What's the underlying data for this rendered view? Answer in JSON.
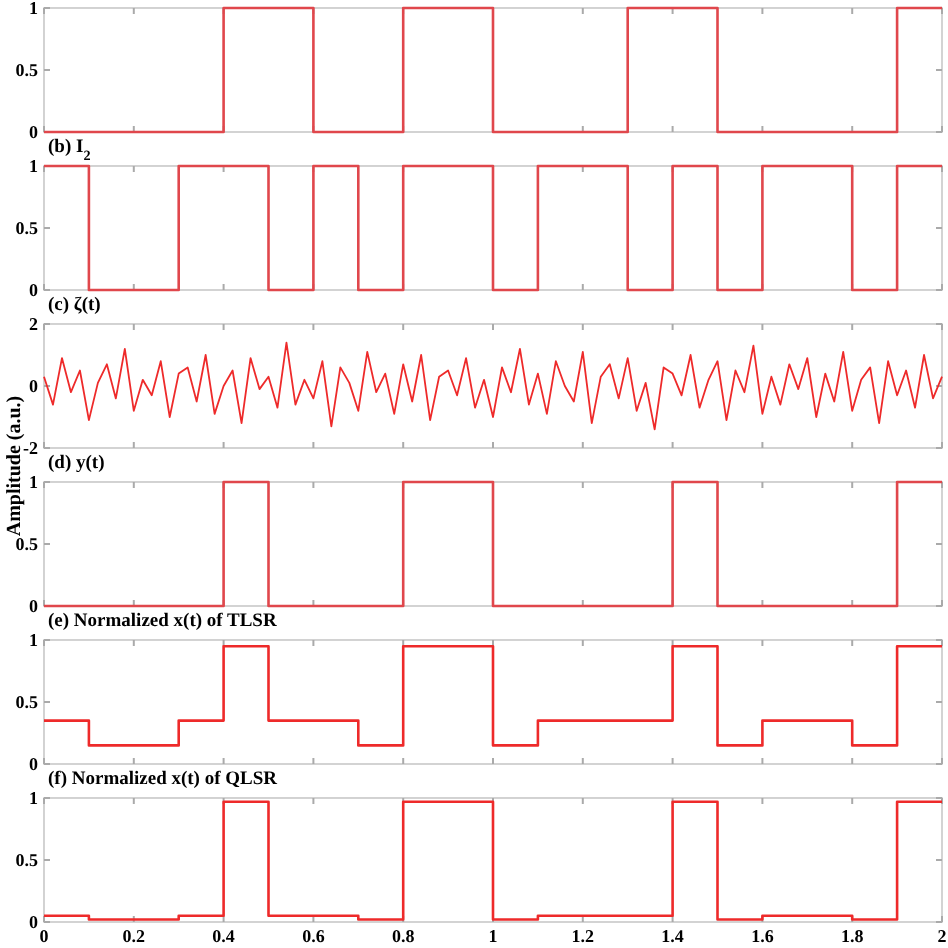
{
  "chart_data": [
    {
      "type": "step",
      "x": [
        0,
        0.4,
        0.6,
        0.8,
        1.0,
        1.3,
        1.5,
        1.9,
        2
      ],
      "series": [
        {
          "color": "#e0474c",
          "values": [
            0,
            1,
            0,
            1,
            0,
            1,
            0,
            1,
            1
          ]
        }
      ],
      "xlim": [
        0,
        2
      ],
      "xticks": [
        0,
        0.2,
        0.4,
        0.6,
        0.8,
        1,
        1.2,
        1.4,
        1.6,
        1.8,
        2
      ],
      "ylim": [
        0,
        1
      ],
      "yticks": [
        0,
        0.5,
        1
      ],
      "tick_labels": "y",
      "grid": false
    },
    {
      "type": "step",
      "title": "(b) I$_{2}$",
      "x": [
        0,
        0.1,
        0.3,
        0.5,
        0.6,
        0.7,
        0.8,
        1.0,
        1.1,
        1.3,
        1.4,
        1.5,
        1.6,
        1.8,
        1.9,
        2
      ],
      "series": [
        {
          "color": "#e0474c",
          "values": [
            1,
            0,
            1,
            0,
            1,
            0,
            1,
            0,
            1,
            0,
            1,
            0,
            1,
            0,
            1,
            1
          ]
        }
      ],
      "xlim": [
        0,
        2
      ],
      "xticks": [
        0,
        0.2,
        0.4,
        0.6,
        0.8,
        1,
        1.2,
        1.4,
        1.6,
        1.8,
        2
      ],
      "ylim": [
        0,
        1
      ],
      "yticks": [
        0,
        0.5,
        1
      ],
      "tick_labels": "y",
      "grid": false
    },
    {
      "type": "line",
      "title": "(c) ζ(t)",
      "x": [
        0,
        0.02,
        0.04,
        0.06,
        0.08,
        0.1,
        0.12,
        0.14,
        0.16,
        0.18,
        0.2,
        0.22,
        0.24,
        0.26,
        0.28,
        0.3,
        0.32,
        0.34,
        0.36,
        0.38,
        0.4,
        0.42,
        0.44,
        0.46,
        0.48,
        0.5,
        0.52,
        0.54,
        0.56,
        0.58,
        0.6,
        0.62,
        0.64,
        0.66,
        0.68,
        0.7,
        0.72,
        0.74,
        0.76,
        0.78,
        0.8,
        0.82,
        0.84,
        0.86,
        0.88,
        0.9,
        0.92,
        0.94,
        0.96,
        0.98,
        1,
        1.02,
        1.04,
        1.06,
        1.08,
        1.1,
        1.12,
        1.14,
        1.16,
        1.18,
        1.2,
        1.22,
        1.24,
        1.26,
        1.28,
        1.3,
        1.32,
        1.34,
        1.36,
        1.38,
        1.4,
        1.42,
        1.44,
        1.46,
        1.48,
        1.5,
        1.52,
        1.54,
        1.56,
        1.58,
        1.6,
        1.62,
        1.64,
        1.66,
        1.68,
        1.7,
        1.72,
        1.74,
        1.76,
        1.78,
        1.8,
        1.82,
        1.84,
        1.86,
        1.88,
        1.9,
        1.92,
        1.94,
        1.96,
        1.98,
        2
      ],
      "series": [
        {
          "color": "#ee2a2a",
          "values": [
            0.3,
            -0.6,
            0.9,
            -0.2,
            0.5,
            -1.1,
            0.1,
            0.7,
            -0.4,
            1.2,
            -0.8,
            0.2,
            -0.3,
            0.8,
            -1.0,
            0.4,
            0.6,
            -0.5,
            1.0,
            -0.9,
            0.0,
            0.5,
            -1.2,
            0.9,
            -0.1,
            0.3,
            -0.7,
            1.4,
            -0.6,
            0.2,
            -0.4,
            0.8,
            -1.3,
            0.6,
            0.1,
            -0.8,
            1.1,
            -0.2,
            0.4,
            -0.9,
            0.7,
            -0.5,
            1.0,
            -1.1,
            0.3,
            0.5,
            -0.3,
            0.9,
            -0.7,
            0.2,
            -1.0,
            0.6,
            -0.2,
            1.2,
            -0.6,
            0.4,
            -0.9,
            0.8,
            0.0,
            -0.5,
            1.1,
            -1.2,
            0.3,
            0.7,
            -0.4,
            0.9,
            -0.8,
            0.1,
            -1.4,
            0.6,
            0.4,
            -0.3,
            1.0,
            -0.7,
            0.2,
            0.8,
            -1.1,
            0.5,
            -0.2,
            1.3,
            -0.9,
            0.3,
            -0.6,
            0.7,
            -0.1,
            0.9,
            -1.0,
            0.4,
            -0.5,
            1.1,
            -0.8,
            0.2,
            0.6,
            -1.2,
            0.8,
            -0.3,
            0.5,
            -0.7,
            1.0,
            -0.4,
            0.3
          ]
        }
      ],
      "xlim": [
        0,
        2
      ],
      "xticks": [
        0,
        0.2,
        0.4,
        0.6,
        0.8,
        1,
        1.2,
        1.4,
        1.6,
        1.8,
        2
      ],
      "ylim": [
        -2,
        2
      ],
      "yticks": [
        -2,
        0,
        2
      ],
      "tick_labels": "y",
      "grid": false
    },
    {
      "type": "step",
      "title": "(d) y(t)",
      "ylabel": "Amplitude (a.u.)",
      "x": [
        0,
        0.4,
        0.5,
        0.8,
        1.0,
        1.4,
        1.5,
        1.9,
        2
      ],
      "series": [
        {
          "color": "#e0474c",
          "values": [
            0,
            1,
            0,
            1,
            0,
            1,
            0,
            1,
            1
          ]
        }
      ],
      "xlim": [
        0,
        2
      ],
      "xticks": [
        0,
        0.2,
        0.4,
        0.6,
        0.8,
        1,
        1.2,
        1.4,
        1.6,
        1.8,
        2
      ],
      "ylim": [
        0,
        1
      ],
      "yticks": [
        0,
        0.5,
        1
      ],
      "tick_labels": "y",
      "grid": false
    },
    {
      "type": "step",
      "title": "(e) Normalized x(t) of TLSR",
      "x": [
        0,
        0.1,
        0.3,
        0.4,
        0.5,
        0.7,
        0.8,
        1.0,
        1.1,
        1.4,
        1.5,
        1.6,
        1.8,
        1.9,
        2
      ],
      "series": [
        {
          "color": "#ee2a2a",
          "values": [
            0.35,
            0.15,
            0.35,
            0.95,
            0.35,
            0.15,
            0.95,
            0.15,
            0.35,
            0.95,
            0.15,
            0.35,
            0.15,
            0.95,
            0.95
          ]
        }
      ],
      "xlim": [
        0,
        2
      ],
      "xticks": [
        0,
        0.2,
        0.4,
        0.6,
        0.8,
        1,
        1.2,
        1.4,
        1.6,
        1.8,
        2
      ],
      "ylim": [
        0,
        1
      ],
      "yticks": [
        0,
        0.5,
        1
      ],
      "tick_labels": "y",
      "grid": false
    },
    {
      "type": "step",
      "title": "(f) Normalized x(t) of QLSR",
      "x": [
        0,
        0.1,
        0.3,
        0.4,
        0.5,
        0.7,
        0.8,
        1.0,
        1.1,
        1.4,
        1.5,
        1.6,
        1.8,
        1.9,
        2
      ],
      "series": [
        {
          "color": "#ee2a2a",
          "values": [
            0.05,
            0.02,
            0.05,
            0.97,
            0.05,
            0.02,
            0.97,
            0.02,
            0.05,
            0.97,
            0.02,
            0.05,
            0.02,
            0.97,
            0.97
          ]
        }
      ],
      "xlim": [
        0,
        2
      ],
      "xticks": [
        0,
        0.2,
        0.4,
        0.6,
        0.8,
        1,
        1.2,
        1.4,
        1.6,
        1.8,
        2
      ],
      "ylim": [
        0,
        1
      ],
      "yticks": [
        0,
        0.5,
        1
      ],
      "grid": false
    }
  ]
}
